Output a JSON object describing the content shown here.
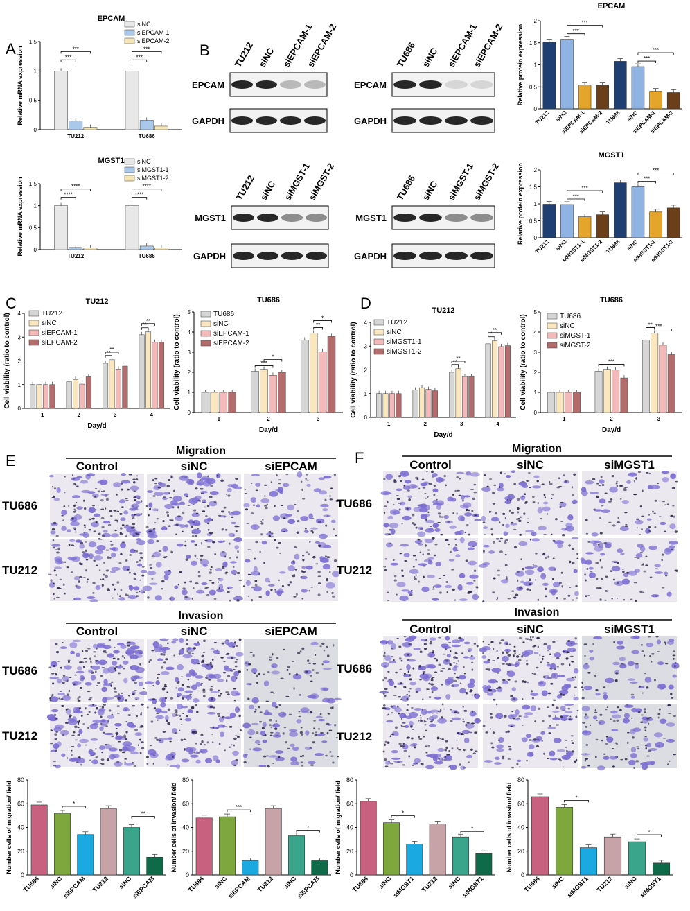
{
  "panels": {
    "A": "A",
    "B": "B",
    "C": "C",
    "D": "D",
    "E": "E",
    "F": "F"
  },
  "colors": {
    "siNC_light": "#e8e8e8",
    "si1_blue": "#aac8ea",
    "si2_cream": "#f7e6b5",
    "wb_navy": "#1f3f73",
    "wb_lightblue": "#8fb3e3",
    "wb_orange": "#e5a42a",
    "wb_brown": "#6b3f1a",
    "cv_gray": "#d6d6d6",
    "cv_cream": "#fbe7bf",
    "cv_pink": "#f4b9b9",
    "cv_rose": "#b36b6b",
    "bar_pink": "#c8607f",
    "bar_olive": "#7ea83d",
    "bar_cyan": "#1aa9e0",
    "bar_mauve": "#c7a2a6",
    "bar_teal": "#3aa58a",
    "bar_green": "#0f6a49",
    "transwell": "#7b6dd2"
  },
  "blots": [
    {
      "name": "EPCAM",
      "lanes": [
        "TU212",
        "siNC",
        "siEPCAM-1",
        "siEPCAM-2"
      ],
      "labels": [
        "EPCAM",
        "GAPDH"
      ]
    },
    {
      "name": "EPCAM",
      "lanes": [
        "TU686",
        "siNC",
        "siEPCAM-1",
        "siEPCAM-2"
      ],
      "labels": [
        "EPCAM",
        "GAPDH"
      ]
    },
    {
      "name": "MGST1",
      "lanes": [
        "TU212",
        "siNC",
        "siMGST-1",
        "siMGST-2"
      ],
      "labels": [
        "MGST1",
        "GAPDH"
      ]
    },
    {
      "name": "MGST1",
      "lanes": [
        "TU686",
        "siNC",
        "siMGST-1",
        "siMGST-2"
      ],
      "labels": [
        "MGST1",
        "GAPDH"
      ]
    }
  ],
  "transwell": {
    "E": {
      "migration": "Migration",
      "invasion": "Invasion",
      "cols": [
        "Control",
        "siNC",
        "siEPCAM"
      ],
      "rows": [
        "TU686",
        "TU212"
      ]
    },
    "F": {
      "migration": "Migration",
      "invasion": "Invasion",
      "cols": [
        "Control",
        "siNC",
        "siMGST1"
      ],
      "rows": [
        "TU686",
        "TU212"
      ]
    }
  },
  "chart_data": [
    {
      "id": "A_epcam",
      "type": "bar",
      "title": "EPCAM",
      "ylabel": "Relative mRNA expression",
      "ylim": [
        0,
        1.5
      ],
      "yticks": [
        0,
        0.5,
        1,
        1.5
      ],
      "categories": [
        "TU212",
        "TU686"
      ],
      "series": [
        {
          "name": "siNC",
          "values": [
            1.0,
            1.0
          ]
        },
        {
          "name": "siEPCAM-1",
          "values": [
            0.15,
            0.16
          ]
        },
        {
          "name": "siEPCAM-2",
          "values": [
            0.04,
            0.06
          ]
        }
      ],
      "annotations": [
        "***",
        "***",
        "***",
        "***"
      ]
    },
    {
      "id": "A_mgst1",
      "type": "bar",
      "title": "MGST1",
      "ylabel": "Relative mRNA expression",
      "ylim": [
        0,
        1.5
      ],
      "yticks": [
        0,
        0.5,
        1,
        1.5
      ],
      "categories": [
        "TU212",
        "TU686"
      ],
      "series": [
        {
          "name": "siNC",
          "values": [
            1.0,
            1.0
          ]
        },
        {
          "name": "siMGST1-1",
          "values": [
            0.05,
            0.08
          ]
        },
        {
          "name": "siMGST1-2",
          "values": [
            0.04,
            0.04
          ]
        }
      ],
      "annotations": [
        "****",
        "****",
        "****",
        "****"
      ]
    },
    {
      "id": "B_epcam",
      "type": "bar",
      "title": "EPCAM",
      "ylabel": "Relative protein expression",
      "ylim": [
        0,
        2.0
      ],
      "yticks": [
        0,
        0.5,
        1,
        1.5,
        2
      ],
      "categories": [
        "TU212",
        "siNC",
        "siEPCAM-1",
        "siEPCAM-2",
        "TU686",
        "siNC",
        "siEPCAM-1",
        "siEPCAM-2"
      ],
      "values": [
        1.52,
        1.58,
        0.54,
        0.54,
        1.08,
        0.96,
        0.4,
        0.37
      ],
      "annotations": [
        "***",
        "***",
        "***",
        "***"
      ]
    },
    {
      "id": "B_mgst1",
      "type": "bar",
      "title": "MGST1",
      "ylabel": "Relarive protein expression",
      "ylim": [
        0,
        2.0
      ],
      "yticks": [
        0,
        0.5,
        1,
        1.5,
        2
      ],
      "categories": [
        "TU212",
        "siNC",
        "siMGST1-1",
        "siMGST1-2",
        "TU686",
        "siNC",
        "siMGST1-1",
        "siMGST1-2"
      ],
      "values": [
        0.99,
        0.98,
        0.62,
        0.68,
        1.62,
        1.5,
        0.76,
        0.88
      ],
      "annotations": [
        "***",
        "***",
        "***",
        "***"
      ]
    },
    {
      "id": "C_tu212",
      "type": "bar",
      "title": "TU212",
      "ylabel": "Cell viability (ratio to control)",
      "xlabel": "Day/d",
      "ylim": [
        0,
        4
      ],
      "yticks": [
        0,
        1,
        2,
        3,
        4
      ],
      "categories": [
        "1",
        "2",
        "3",
        "4"
      ],
      "series": [
        {
          "name": "TU212",
          "values": [
            1.0,
            1.12,
            1.9,
            3.1
          ]
        },
        {
          "name": "siNC",
          "values": [
            1.0,
            1.22,
            2.05,
            3.22
          ]
        },
        {
          "name": "siEPCAM-1",
          "values": [
            1.0,
            1.02,
            1.65,
            2.78
          ]
        },
        {
          "name": "siEPCAM-2",
          "values": [
            1.0,
            1.33,
            1.78,
            2.78
          ]
        }
      ],
      "annotations": [
        "**",
        "**",
        "**",
        "**"
      ]
    },
    {
      "id": "C_tu686",
      "type": "bar",
      "title": "TU686",
      "ylabel": "Cell viability (ratio to control)",
      "xlabel": "Day/d",
      "ylim": [
        0,
        5
      ],
      "yticks": [
        0,
        1,
        2,
        3,
        4,
        5
      ],
      "categories": [
        "1",
        "2",
        "3"
      ],
      "series": [
        {
          "name": "TU686",
          "values": [
            1.0,
            2.05,
            3.6
          ]
        },
        {
          "name": "siNC",
          "values": [
            1.0,
            2.15,
            3.95
          ]
        },
        {
          "name": "siEPCAM-1",
          "values": [
            1.0,
            1.85,
            3.02
          ]
        },
        {
          "name": "siEPCAM-2",
          "values": [
            1.0,
            2.0,
            3.78
          ]
        }
      ],
      "annotations": [
        "*",
        "***",
        "*",
        "**"
      ]
    },
    {
      "id": "D_tu212",
      "type": "bar",
      "title": "TU212",
      "ylabel": "Cell viability (ratio to control)",
      "xlabel": "Day/d",
      "ylim": [
        0,
        4
      ],
      "yticks": [
        0,
        1,
        2,
        3,
        4
      ],
      "categories": [
        "1",
        "2",
        "3",
        "4"
      ],
      "series": [
        {
          "name": "TU212",
          "values": [
            1.0,
            1.15,
            1.9,
            3.1
          ]
        },
        {
          "name": "siNC",
          "values": [
            1.0,
            1.25,
            2.05,
            3.22
          ]
        },
        {
          "name": "siMGST1-1",
          "values": [
            1.0,
            1.18,
            1.72,
            2.98
          ]
        },
        {
          "name": "siMGST1-2",
          "values": [
            1.0,
            1.12,
            1.72,
            3.02
          ]
        }
      ],
      "annotations": [
        "**",
        "**",
        "*",
        "**"
      ]
    },
    {
      "id": "D_tu686",
      "type": "bar",
      "title": "TU686",
      "ylabel": "Cell viability (ratio to control)",
      "xlabel": "Day/d",
      "ylim": [
        0,
        5
      ],
      "yticks": [
        0,
        1,
        2,
        3,
        4,
        5
      ],
      "categories": [
        "1",
        "2",
        "3"
      ],
      "series": [
        {
          "name": "TU686",
          "values": [
            1.0,
            2.05,
            3.6
          ]
        },
        {
          "name": "siNC",
          "values": [
            1.0,
            2.15,
            3.95
          ]
        },
        {
          "name": "siMGST-1",
          "values": [
            1.0,
            2.12,
            3.35
          ]
        },
        {
          "name": "siMGST-2",
          "values": [
            1.0,
            1.72,
            2.88
          ]
        }
      ],
      "annotations": [
        "***",
        "***",
        "**"
      ]
    },
    {
      "id": "E_migration",
      "type": "bar",
      "ylabel": "Number cells of migration/ field",
      "ylim": [
        0,
        80
      ],
      "yticks": [
        0,
        20,
        40,
        60,
        80
      ],
      "categories": [
        "TU686",
        "siNC",
        "siEPCAM",
        "TU212",
        "siNC",
        "siEPCAM"
      ],
      "values": [
        59,
        52,
        34,
        56,
        40,
        15
      ],
      "annotations": [
        "*",
        "**"
      ]
    },
    {
      "id": "E_invasion",
      "type": "bar",
      "ylabel": "Number cells of invasion/ field",
      "ylim": [
        0,
        80
      ],
      "yticks": [
        0,
        20,
        40,
        60,
        80
      ],
      "categories": [
        "TU686",
        "siNC",
        "siEPCAM",
        "TU212",
        "siNC",
        "siEPCAM"
      ],
      "values": [
        48,
        49,
        12,
        56,
        33,
        12
      ],
      "annotations": [
        "***",
        "*"
      ]
    },
    {
      "id": "F_migration",
      "type": "bar",
      "ylabel": "Number cells of migration/ field",
      "ylim": [
        0,
        80
      ],
      "yticks": [
        0,
        20,
        40,
        60,
        80
      ],
      "categories": [
        "TU686",
        "siNC",
        "siMGST1",
        "TU212",
        "siNC",
        "siMGST1"
      ],
      "values": [
        62,
        44,
        26,
        43,
        32,
        18
      ],
      "annotations": [
        "*",
        "*"
      ]
    },
    {
      "id": "F_invasion",
      "type": "bar",
      "ylabel": "Number cells of invasion/ field",
      "ylim": [
        0,
        80
      ],
      "yticks": [
        0,
        20,
        40,
        60,
        80
      ],
      "categories": [
        "TU686",
        "siNC",
        "siMGST1",
        "TU212",
        "siNC",
        "siMGST1"
      ],
      "values": [
        66,
        57,
        23,
        32,
        28,
        10
      ],
      "annotations": [
        "*",
        "*"
      ]
    }
  ]
}
